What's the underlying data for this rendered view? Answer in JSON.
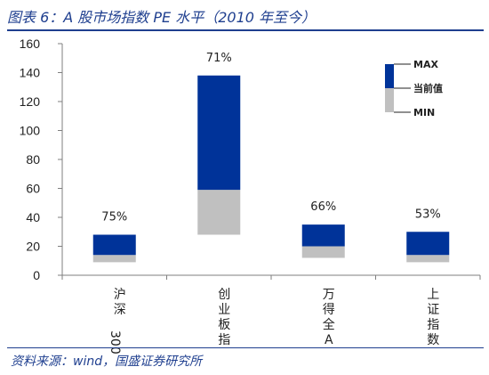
{
  "figure": {
    "title": "图表 6：A 股市场指数 PE 水平（2010 年至今）",
    "source": "资料来源：wind，国盛证券研究所"
  },
  "colors": {
    "upper": "#003399",
    "lower": "#c0c0c0",
    "axis": "#7f7f7f",
    "accent": "#1f3f8f"
  },
  "chart_data": {
    "type": "bar",
    "title": "",
    "xlabel": "",
    "ylabel": "",
    "ylim": [
      0,
      160
    ],
    "yticks": [
      0,
      20,
      40,
      60,
      80,
      100,
      120,
      140,
      160
    ],
    "grid": false,
    "legend_position": "top-right",
    "legend": {
      "max": "MAX",
      "current": "当前值",
      "min": "MIN"
    },
    "categories": [
      "沪深300",
      "创业板指",
      "万得全A",
      "上证指数"
    ],
    "max": [
      28,
      138,
      35,
      30
    ],
    "current": [
      14,
      59,
      20,
      14
    ],
    "min": [
      9,
      28,
      12,
      9
    ],
    "percentile_labels": [
      "75%",
      "71%",
      "66%",
      "53%"
    ]
  }
}
